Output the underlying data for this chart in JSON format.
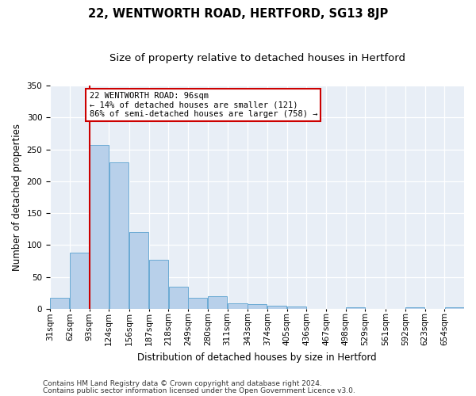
{
  "title": "22, WENTWORTH ROAD, HERTFORD, SG13 8JP",
  "subtitle": "Size of property relative to detached houses in Hertford",
  "xlabel": "Distribution of detached houses by size in Hertford",
  "ylabel": "Number of detached properties",
  "footer1": "Contains HM Land Registry data © Crown copyright and database right 2024.",
  "footer2": "Contains public sector information licensed under the Open Government Licence v3.0.",
  "categories": [
    "31sqm",
    "62sqm",
    "93sqm",
    "124sqm",
    "156sqm",
    "187sqm",
    "218sqm",
    "249sqm",
    "280sqm",
    "311sqm",
    "343sqm",
    "374sqm",
    "405sqm",
    "436sqm",
    "467sqm",
    "498sqm",
    "529sqm",
    "561sqm",
    "592sqm",
    "623sqm",
    "654sqm"
  ],
  "values": [
    17,
    88,
    257,
    229,
    120,
    77,
    35,
    17,
    20,
    8,
    7,
    5,
    3,
    0,
    0,
    2,
    0,
    0,
    2,
    0,
    2
  ],
  "bar_color": "#b8d0ea",
  "bar_edge_color": "#6aaad4",
  "bin_edges": [
    31,
    62,
    93,
    124,
    156,
    187,
    218,
    249,
    280,
    311,
    343,
    374,
    405,
    436,
    467,
    498,
    529,
    561,
    592,
    623,
    654,
    685
  ],
  "red_line_color": "#cc0000",
  "annotation_box_text": [
    "22 WENTWORTH ROAD: 96sqm",
    "← 14% of detached houses are smaller (121)",
    "86% of semi-detached houses are larger (758) →"
  ],
  "annotation_box_edge": "#cc0000",
  "ylim": [
    0,
    350
  ],
  "yticks": [
    0,
    50,
    100,
    150,
    200,
    250,
    300,
    350
  ],
  "background_color": "#e8eef6",
  "grid_color": "#ffffff",
  "title_fontsize": 10.5,
  "subtitle_fontsize": 9.5,
  "axis_label_fontsize": 8.5,
  "tick_fontsize": 7.5,
  "footer_fontsize": 6.5,
  "annotation_fontsize": 7.5
}
